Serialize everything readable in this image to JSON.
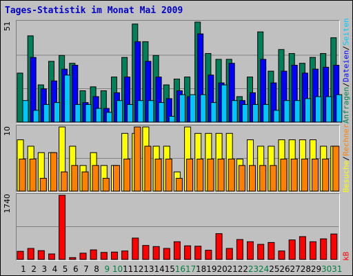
{
  "title": "Tages-Statistik im Monat Mai 2009",
  "colors": {
    "frame": "#c0c0c0",
    "title": "#0000c8",
    "anfragen": "#00805a",
    "dateien": "#0000ff",
    "seiten": "#00c8ff",
    "besuche": "#ffff00",
    "rechner": "#ff8000",
    "kb": "#ff0000",
    "weekend_label": "#008040",
    "weekday_label": "#000000"
  },
  "right_labels": {
    "top": [
      {
        "text": "Anfragen",
        "color": "#00805a"
      },
      {
        "text": " / ",
        "color": "#000000"
      },
      {
        "text": "Dateien",
        "color": "#0000ff"
      },
      {
        "text": " / ",
        "color": "#000000"
      },
      {
        "text": "Seiten",
        "color": "#00c8ff"
      }
    ],
    "middle": [
      {
        "text": "Besuche",
        "color": "#ffff00"
      },
      {
        "text": " / ",
        "color": "#000000"
      },
      {
        "text": "Rechner",
        "color": "#ff8000"
      }
    ],
    "bottom": [
      {
        "text": "kB",
        "color": "#ff0000"
      }
    ]
  },
  "chart_data": {
    "type": "bar",
    "title": "Tages-Statistik im Monat Mai 2009",
    "categories": [
      "1",
      "2",
      "3",
      "4",
      "5",
      "6",
      "7",
      "8",
      "9",
      "10",
      "11",
      "12",
      "13",
      "14",
      "15",
      "16",
      "17",
      "18",
      "19",
      "20",
      "21",
      "22",
      "23",
      "24",
      "25",
      "26",
      "27",
      "28",
      "29",
      "30",
      "31"
    ],
    "weekend_days": [
      "9",
      "10",
      "16",
      "17",
      "23",
      "24",
      "30",
      "31"
    ],
    "panels": [
      {
        "ymax_label": "51",
        "ylim": [
          0,
          51
        ],
        "series": [
          {
            "name": "Anfragen",
            "values": [
              25,
              44,
              19,
              31,
              34,
              30,
              16,
              18,
              16,
              23,
              33,
              50,
              41,
              34,
              19,
              22,
              23,
              51,
              35,
              32,
              32,
              13,
              23,
              46,
              26,
              37,
              35,
              30,
              33,
              35,
              43
            ]
          },
          {
            "name": "Dateien",
            "values": [
              0,
              33,
              17,
              21,
              27,
              29,
              10,
              13,
              7,
              15,
              23,
              41,
              31,
              23,
              12,
              16,
              13,
              45,
              24,
              20,
              30,
              11,
              15,
              32,
              20,
              26,
              29,
              25,
              27,
              28,
              29
            ]
          },
          {
            "name": "Seiten",
            "values": [
              11,
              6,
              9,
              10,
              24,
              9,
              9,
              7,
              5,
              11,
              9,
              11,
              11,
              10,
              3,
              14,
              14,
              14,
              10,
              19,
              11,
              9,
              9,
              9,
              6,
              11,
              11,
              12,
              13,
              13,
              14
            ]
          }
        ]
      },
      {
        "ymax_label": "10",
        "ylim": [
          0,
          10
        ],
        "series": [
          {
            "name": "Besuche",
            "values": [
              8,
              7,
              6,
              6,
              10,
              7,
              4,
              6,
              4,
              4,
              9,
              9,
              10,
              7,
              7,
              3,
              10,
              9,
              9,
              9,
              9,
              5,
              8,
              7,
              7,
              8,
              8,
              8,
              8,
              7,
              7
            ]
          },
          {
            "name": "Rechner",
            "values": [
              5,
              5,
              2,
              6,
              3,
              4,
              3,
              4,
              2,
              4,
              5,
              10,
              7,
              5,
              5,
              2,
              5,
              5,
              5,
              5,
              5,
              4,
              4,
              4,
              4,
              5,
              5,
              5,
              5,
              5,
              7
            ]
          }
        ]
      },
      {
        "ymax_label": "1740",
        "ylim": [
          0,
          1740
        ],
        "series": [
          {
            "name": "kB",
            "values": [
              220,
              300,
              240,
              150,
              1740,
              50,
              170,
              260,
              190,
              200,
              230,
              580,
              380,
              350,
              300,
              480,
              370,
              360,
              250,
              700,
              300,
              540,
              480,
              410,
              460,
              230,
              530,
              620,
              480,
              560,
              690
            ]
          }
        ]
      }
    ]
  }
}
